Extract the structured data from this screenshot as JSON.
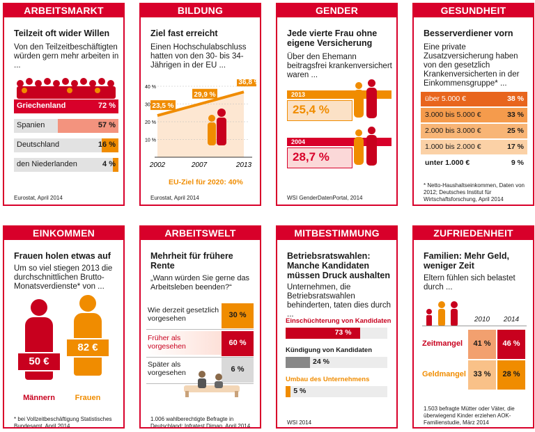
{
  "colors": {
    "red": "#d8002a",
    "orange": "#f08c00",
    "light_orange": "#fbd7a6",
    "peach": "#fde4cf",
    "grey": "#e2e2e2"
  },
  "cards": [
    {
      "category": "ARBEITSMARKT",
      "title": "Teilzeit oft wider Willen",
      "subtitle": "Von den Teilzeitbeschäftigten würden gern mehr arbeiten in ...",
      "source": "Eurostat, April 2014"
    },
    {
      "category": "BILDUNG",
      "title": "Ziel fast erreicht",
      "subtitle": "Einen Hochschulabschluss hatten von den 30- bis 34-Jährigen in der EU ...",
      "source": "Eurostat, April 2014",
      "target": "EU-Ziel für 2020: 40%"
    },
    {
      "category": "GENDER",
      "title": "Jede vierte Frau ohne eigene Versicherung",
      "subtitle": "Über den Ehemann beitragsfrei krankenversichert waren ...",
      "source": "WSI GenderDatenPortal, 2014"
    },
    {
      "category": "GESUNDHEIT",
      "title": "Besserverdiener vorn",
      "subtitle": "Eine private Zusatzversicherung haben von den gesetzlich Krankenversicherten in der Einkommensgruppe* ...",
      "source": "* Netto-Haushaltseinkommen, Daten von 2012; Deutsches Institut für Wirtschaftsforschung, April 2014"
    },
    {
      "category": "EINKOMMEN",
      "title": "Frauen holen etwas auf",
      "subtitle": "Um so viel stiegen 2013 die durchschnittlichen Brutto-Monatsverdienste* von ...",
      "source": "* bei Vollzeitbeschäftigung Statistisches Bundesamt, April 2014"
    },
    {
      "category": "ARBEITSWELT",
      "title": "Mehrheit für frühere Rente",
      "subtitle": "„Wann würden Sie gerne das Arbeitsleben beenden?“",
      "source": "1.006 wahlberechtigte Befragte in Deutschland; Infratest Dimap, April 2014"
    },
    {
      "category": "MITBESTIMMUNG",
      "title": "Betriebsratswahlen: Manche Kandidaten müssen Druck aushalten",
      "subtitle": "Unternehmen, die Betriebsratswahlen behinderten, taten dies durch ...",
      "source": "WSI 2014"
    },
    {
      "category": "ZUFRIEDENHEIT",
      "title": "Familien: Mehr Geld, weniger Zeit",
      "subtitle": "Eltern fühlen sich belastet durch ...",
      "source": "1.503 befragte Mütter oder Väter, die überwiegend Kinder erziehen AOK-Familienstudie, März 2014"
    }
  ],
  "chart_data": [
    {
      "type": "bar",
      "categories": [
        "Griechenland",
        "Spanien",
        "Deutschland",
        "den Niederlanden"
      ],
      "values": [
        72,
        57,
        16,
        4
      ],
      "labels": [
        "72 %",
        "57 %",
        "16 %",
        "4 %"
      ]
    },
    {
      "type": "line",
      "x": [
        "2002",
        "2007",
        "2013"
      ],
      "values": [
        23.5,
        29.9,
        36.8
      ],
      "labels": [
        "23,5 %",
        "29,9 %",
        "36,8 %"
      ],
      "yticks": [
        "40 %",
        "30 %",
        "20 %",
        "10 %"
      ],
      "ylim": [
        0,
        40
      ]
    },
    {
      "type": "bar",
      "categories": [
        "2013",
        "2004"
      ],
      "values": [
        25.4,
        28.7
      ],
      "labels": [
        "25,4 %",
        "28,7 %"
      ]
    },
    {
      "type": "table",
      "categories": [
        "über 5.000 €",
        "3.000 bis 5.000 €",
        "2.000 bis 3.000 €",
        "1.000 bis 2.000 €",
        "unter 1.000 €"
      ],
      "values": [
        38,
        33,
        25,
        17,
        9
      ],
      "labels": [
        "38 %",
        "33 %",
        "25 %",
        "17 %",
        "9 %"
      ]
    },
    {
      "type": "bar",
      "categories": [
        "Männern",
        "Frauen"
      ],
      "values": [
        50,
        82
      ],
      "labels": [
        "50 €",
        "82 €"
      ]
    },
    {
      "type": "table",
      "categories": [
        "Wie derzeit gesetzlich vorgesehen",
        "Früher als vorgesehen",
        "Später als vorgesehen"
      ],
      "values": [
        30,
        60,
        6
      ],
      "labels": [
        "30 %",
        "60 %",
        "6 %"
      ]
    },
    {
      "type": "bar",
      "categories": [
        "Einschüchterung von Kandidaten",
        "Kündigung von Kandidaten",
        "Umbau des Unternehmens"
      ],
      "values": [
        73,
        24,
        5
      ],
      "labels": [
        "73 %",
        "24 %",
        "5 %"
      ]
    },
    {
      "type": "table",
      "columns": [
        "2010",
        "2014"
      ],
      "categories": [
        "Zeitmangel",
        "Geldmangel"
      ],
      "values": [
        [
          41,
          46
        ],
        [
          33,
          28
        ]
      ],
      "labels": [
        [
          "41 %",
          "46 %"
        ],
        [
          "33 %",
          "28 %"
        ]
      ]
    }
  ]
}
